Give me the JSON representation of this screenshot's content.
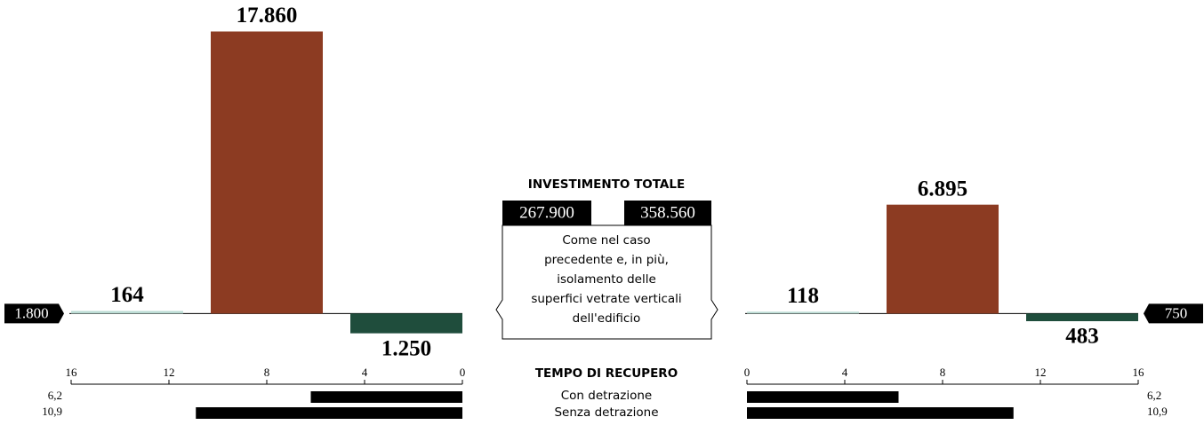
{
  "chart_data": [
    {
      "type": "bar",
      "baseline_label": "1.800",
      "values": [
        164,
        17860,
        -1250
      ],
      "value_labels": [
        "164",
        "17.860",
        "1.250"
      ],
      "colors": [
        "#bcdcd4",
        "#8c3b22",
        "#1f4d3c"
      ],
      "ylim": [
        -2000,
        18000
      ]
    },
    {
      "type": "hbar",
      "values": [
        6.2,
        10.9
      ],
      "value_labels": [
        "6,2",
        "10,9"
      ],
      "color": "#000000",
      "xlim": [
        0,
        16
      ],
      "xticks": [
        0,
        4,
        8,
        12,
        16
      ],
      "xreversed": true
    },
    {
      "type": "bar",
      "baseline_label": "750",
      "values": [
        118,
        6895,
        -483
      ],
      "value_labels": [
        "118",
        "6.895",
        "483"
      ],
      "colors": [
        "#bcdcd4",
        "#8c3b22",
        "#1f4d3c"
      ],
      "ylim": [
        -2000,
        18000
      ]
    },
    {
      "type": "hbar",
      "values": [
        6.2,
        10.9
      ],
      "value_labels": [
        "6,2",
        "10,9"
      ],
      "color": "#000000",
      "xlim": [
        0,
        16
      ],
      "xticks": [
        0,
        4,
        8,
        12,
        16
      ],
      "xreversed": false
    }
  ],
  "center": {
    "title": "INVESTIMENTO TOTALE",
    "investments": [
      "267.900",
      "358.560"
    ],
    "description": [
      "Come nel caso",
      "precedente e, in più,",
      "isolamento delle",
      "superfici vetrate verticali",
      "dell'edificio"
    ],
    "recovery_title": "TEMPO DI RECUPERO",
    "rows": [
      "Con detrazione",
      "Senza detrazione"
    ]
  }
}
